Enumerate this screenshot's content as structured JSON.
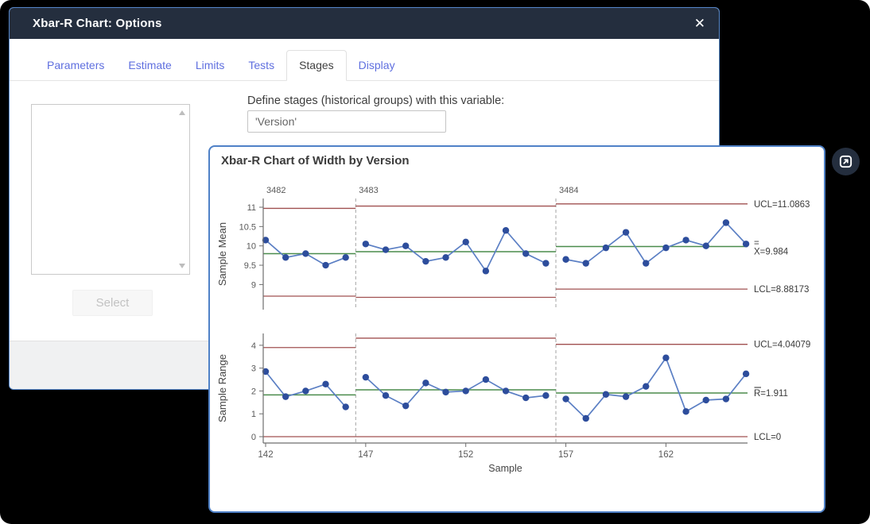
{
  "dialog": {
    "title": "Xbar-R Chart: Options",
    "close_glyph": "✕",
    "tabs": [
      {
        "label": "Parameters",
        "active": false
      },
      {
        "label": "Estimate",
        "active": false
      },
      {
        "label": "Limits",
        "active": false
      },
      {
        "label": "Tests",
        "active": false
      },
      {
        "label": "Stages",
        "active": true
      },
      {
        "label": "Display",
        "active": false
      }
    ],
    "stages_tab": {
      "list_box": {
        "items": []
      },
      "select_button_label": "Select",
      "select_button_enabled": false,
      "variable_label": "Define stages (historical groups) with this variable:",
      "variable_value": "'Version'"
    }
  },
  "chart_window": {
    "title": "Xbar-R Chart of Width by Version"
  },
  "chart_data": [
    {
      "type": "line",
      "subtype": "xbar-control-chart",
      "title": "Sample Mean chart",
      "ylabel": "Sample Mean",
      "xlabel": "Sample",
      "samples": [
        142,
        143,
        144,
        145,
        146,
        147,
        148,
        149,
        150,
        151,
        152,
        153,
        154,
        155,
        156,
        157,
        158,
        159,
        160,
        161,
        162,
        163,
        164,
        165,
        166
      ],
      "values": [
        10.15,
        9.7,
        9.8,
        9.5,
        9.7,
        10.05,
        9.9,
        10.0,
        9.6,
        9.7,
        10.1,
        9.35,
        10.4,
        9.8,
        9.55,
        9.65,
        9.55,
        9.95,
        10.35,
        9.55,
        9.95,
        10.15,
        10.0,
        10.6,
        10.05
      ],
      "yticks": [
        9,
        9.5,
        10,
        10.5,
        11
      ],
      "ylim": [
        8.35,
        11.23
      ],
      "grid": false,
      "legend": "none",
      "stages": [
        {
          "name": "3482",
          "from": 142,
          "to": 146,
          "ucl": 10.97,
          "center": 9.8,
          "lcl": 8.7
        },
        {
          "name": "3483",
          "from": 147,
          "to": 156,
          "ucl": 11.03,
          "center": 9.85,
          "lcl": 8.67
        },
        {
          "name": "3484",
          "from": 157,
          "to": 166,
          "ucl": 11.0863,
          "center": 9.984,
          "lcl": 8.88173
        }
      ],
      "labels": {
        "ucl": "UCL=11.0863",
        "center": "X=9.984",
        "center_decoration": "=",
        "lcl": "LCL=8.88173"
      }
    },
    {
      "type": "line",
      "subtype": "r-control-chart",
      "title": "Sample Range chart",
      "ylabel": "Sample Range",
      "xlabel": "Sample",
      "samples": [
        142,
        143,
        144,
        145,
        146,
        147,
        148,
        149,
        150,
        151,
        152,
        153,
        154,
        155,
        156,
        157,
        158,
        159,
        160,
        161,
        162,
        163,
        164,
        165,
        166
      ],
      "values": [
        2.85,
        1.75,
        2.0,
        2.3,
        1.3,
        2.6,
        1.8,
        1.35,
        2.35,
        1.95,
        2.0,
        2.5,
        2.0,
        1.7,
        1.8,
        1.65,
        0.8,
        1.85,
        1.75,
        2.2,
        3.45,
        1.1,
        1.6,
        1.65,
        2.75
      ],
      "yticks": [
        0,
        1,
        2,
        3,
        4
      ],
      "xticks": [
        142,
        147,
        152,
        157,
        162
      ],
      "ylim": [
        -0.28,
        4.52
      ],
      "grid": false,
      "legend": "none",
      "stages": [
        {
          "name": "3482",
          "from": 142,
          "to": 146,
          "ucl": 3.9,
          "center": 1.83,
          "lcl": 0
        },
        {
          "name": "3483",
          "from": 147,
          "to": 156,
          "ucl": 4.31,
          "center": 2.05,
          "lcl": 0
        },
        {
          "name": "3484",
          "from": 157,
          "to": 166,
          "ucl": 4.04079,
          "center": 1.911,
          "lcl": 0
        }
      ],
      "labels": {
        "ucl": "UCL=4.04079",
        "center": "R=1.911",
        "center_decoration": "macron",
        "lcl": "LCL=0"
      }
    }
  ],
  "icons": {
    "close": "✕",
    "scroll_up": "▲",
    "scroll_down": "▼",
    "expand": "open-in-new-window"
  },
  "colors": {
    "titlebar": "#242e3e",
    "window_border": "#4f81c7",
    "tab_inactive_text": "#5f6fdf",
    "series_line": "#5b7fc4",
    "series_marker": "#2d4d9c",
    "center_line": "#4a8c4c",
    "control_limit_line": "#a05050",
    "stage_divider": "#a3a3a3"
  }
}
